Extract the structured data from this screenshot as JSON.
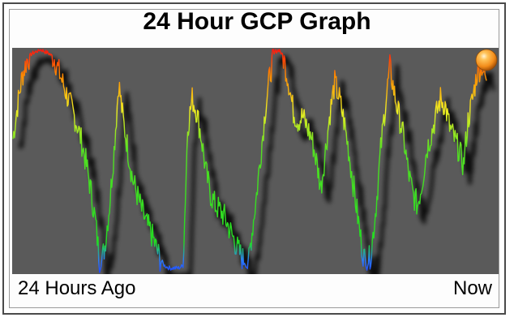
{
  "widget": {
    "title": "24 Hour GCP Graph",
    "x_start_label": "24 Hours Ago",
    "x_end_label": "Now",
    "indicator_color": "#f28c1a"
  },
  "chart_data": {
    "type": "line",
    "title": "24 Hour GCP Graph",
    "xlabel": "",
    "ylabel": "",
    "x_tick_labels": [
      "24 Hours Ago",
      "Now"
    ],
    "ylim": [
      0,
      1
    ],
    "grid": false,
    "background_color": "#5a5a5a",
    "color_scale": [
      "#2040ff",
      "#22dd22",
      "#eeee22",
      "#ff8800",
      "#ff1010"
    ],
    "series": [
      {
        "values": [
          0.6,
          0.75,
          0.88,
          0.95,
          0.98,
          0.99,
          1.0,
          0.99,
          0.98,
          0.96,
          0.9,
          0.84,
          0.78,
          0.72,
          0.66,
          0.58,
          0.48,
          0.36,
          0.22,
          0.02,
          0.12,
          0.3,
          0.55,
          0.85,
          0.68,
          0.55,
          0.42,
          0.35,
          0.28,
          0.22,
          0.18,
          0.12,
          0.06,
          0.03,
          0.02,
          0.02,
          0.02,
          0.03,
          0.65,
          0.78,
          0.72,
          0.6,
          0.45,
          0.35,
          0.3,
          0.28,
          0.25,
          0.2,
          0.15,
          0.1,
          0.06,
          0.02,
          0.18,
          0.35,
          0.55,
          0.75,
          0.9,
          0.99,
          1.0,
          0.95,
          0.85,
          0.72,
          0.68,
          0.7,
          0.65,
          0.6,
          0.5,
          0.38,
          0.55,
          0.72,
          0.85,
          0.78,
          0.68,
          0.55,
          0.4,
          0.25,
          0.1,
          0.02,
          0.1,
          0.3,
          0.55,
          0.75,
          0.92,
          0.8,
          0.7,
          0.6,
          0.45,
          0.35,
          0.3,
          0.4,
          0.55,
          0.62,
          0.7,
          0.78,
          0.75,
          0.65,
          0.6,
          0.55,
          0.48,
          0.68,
          0.78,
          0.9,
          0.93,
          0.86
        ]
      }
    ]
  }
}
